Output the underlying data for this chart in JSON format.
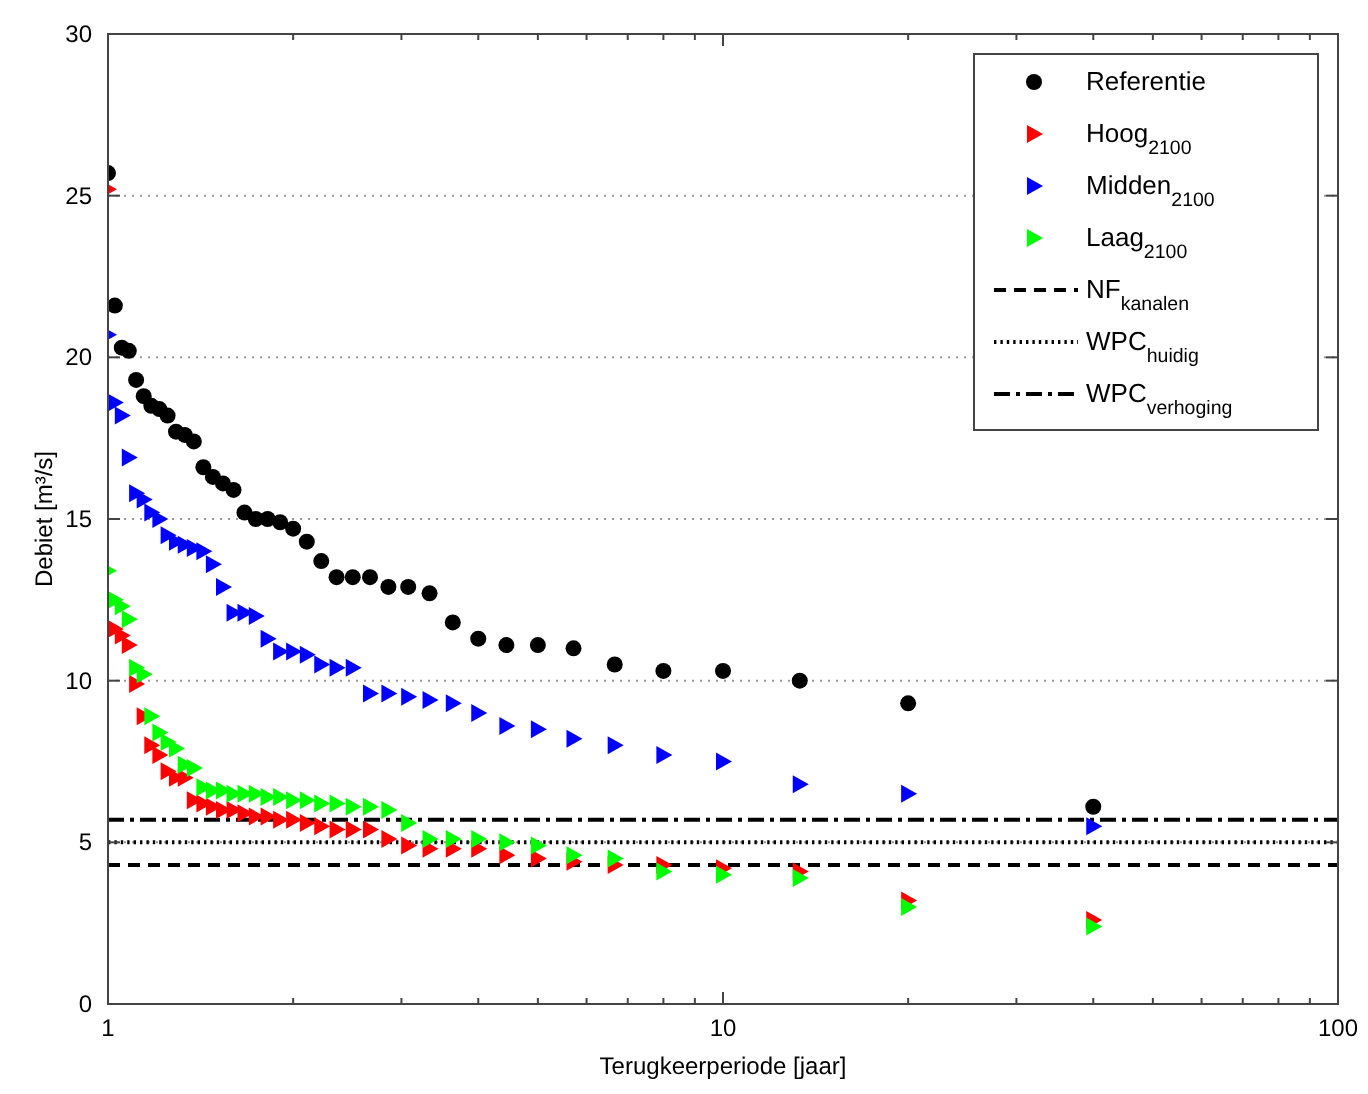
{
  "chart_data": {
    "type": "scatter",
    "xlabel": "Terugkeerperiode [jaar]",
    "ylabel": "Debiet [m³/s]",
    "log": "x",
    "xlim": [
      1,
      100
    ],
    "ylim": [
      0,
      30
    ],
    "xticks": [
      1,
      {
        "value": 2,
        "label": null
      },
      {
        "value": 3,
        "label": null
      },
      {
        "value": 4,
        "label": null
      },
      {
        "value": 5,
        "label": null
      },
      {
        "value": 6,
        "label": null
      },
      {
        "value": 7,
        "label": null
      },
      {
        "value": 8,
        "label": null
      },
      {
        "value": 9,
        "label": null
      },
      10,
      {
        "value": 20,
        "label": null
      },
      {
        "value": 30,
        "label": null
      },
      {
        "value": 40,
        "label": null
      },
      {
        "value": 50,
        "label": null
      },
      {
        "value": 60,
        "label": null
      },
      {
        "value": 70,
        "label": null
      },
      {
        "value": 80,
        "label": null
      },
      {
        "value": 90,
        "label": null
      },
      100
    ],
    "yticks": [
      0,
      5,
      10,
      15,
      20,
      25,
      30
    ],
    "grid": "y",
    "legend": "top right",
    "x": [
      1,
      1.026,
      1.053,
      1.081,
      1.111,
      1.143,
      1.176,
      1.212,
      1.25,
      1.29,
      1.333,
      1.379,
      1.429,
      1.481,
      1.538,
      1.6,
      1.667,
      1.739,
      1.818,
      1.905,
      2,
      2.105,
      2.222,
      2.353,
      2.5,
      2.667,
      2.857,
      3.077,
      3.333,
      3.636,
      4,
      4.444,
      5,
      5.714,
      6.667,
      8,
      10,
      13.33,
      20,
      40
    ],
    "series": [
      {
        "name": "Referentie",
        "color": "#000000",
        "marker": "circle",
        "values": [
          25.7,
          21.6,
          20.3,
          20.2,
          19.3,
          18.8,
          18.5,
          18.4,
          18.2,
          17.7,
          17.6,
          17.4,
          16.6,
          16.3,
          16.1,
          15.9,
          15.2,
          15.0,
          15.0,
          14.9,
          14.7,
          14.3,
          13.7,
          13.2,
          13.2,
          13.2,
          12.9,
          12.9,
          12.7,
          11.8,
          11.3,
          11.1,
          11.1,
          11.0,
          10.5,
          10.3,
          10.3,
          10.0,
          9.3,
          6.1
        ]
      },
      {
        "name": "Hoog$_{2100}$",
        "color": "#ff0000",
        "marker": "triangle",
        "values": [
          25.2,
          11.6,
          11.4,
          11.1,
          9.9,
          8.9,
          8.0,
          7.7,
          7.2,
          7.0,
          7.0,
          6.3,
          6.2,
          6.1,
          6.0,
          6.0,
          5.9,
          5.8,
          5.8,
          5.7,
          5.7,
          5.6,
          5.5,
          5.4,
          5.4,
          5.4,
          5.1,
          4.9,
          4.8,
          4.8,
          4.8,
          4.6,
          4.5,
          4.4,
          4.3,
          4.3,
          4.2,
          4.1,
          3.2,
          2.6
        ]
      },
      {
        "name": "Midden$_{2100}$",
        "color": "#0000ff",
        "marker": "triangle",
        "values": [
          20.7,
          18.6,
          18.2,
          16.9,
          15.8,
          15.6,
          15.2,
          15.0,
          14.5,
          14.3,
          14.2,
          14.1,
          14.0,
          13.6,
          12.9,
          12.1,
          12.1,
          12.0,
          11.3,
          10.9,
          10.9,
          10.8,
          10.5,
          10.4,
          10.4,
          9.6,
          9.6,
          9.5,
          9.4,
          9.3,
          9.0,
          8.6,
          8.5,
          8.2,
          8.0,
          7.7,
          7.5,
          6.8,
          6.5,
          5.5
        ]
      },
      {
        "name": "Laag$_{2100}$",
        "color": "#00ff00",
        "marker": "triangle",
        "values": [
          13.4,
          12.5,
          12.3,
          11.9,
          10.4,
          10.2,
          8.9,
          8.4,
          8.1,
          7.9,
          7.4,
          7.3,
          6.7,
          6.6,
          6.6,
          6.5,
          6.5,
          6.5,
          6.4,
          6.4,
          6.3,
          6.3,
          6.2,
          6.2,
          6.1,
          6.1,
          6.0,
          5.6,
          5.1,
          5.1,
          5.1,
          5.0,
          4.9,
          4.6,
          4.5,
          4.1,
          4.0,
          3.9,
          3.0,
          2.4
        ]
      }
    ],
    "ref_lines": [
      {
        "axis": "y",
        "value": 4.3,
        "label": "NF$_{kanalen}$",
        "color": "#000000",
        "line_style": "dashed"
      },
      {
        "axis": "y",
        "value": 5.0,
        "label": "WPC$_{huidig}$",
        "color": "#000000",
        "line_style": "dotted"
      },
      {
        "axis": "y",
        "value": 5.7,
        "label": "WPC$_{verhoging}$",
        "color": "#000000",
        "line_style": "dashdot"
      }
    ]
  }
}
